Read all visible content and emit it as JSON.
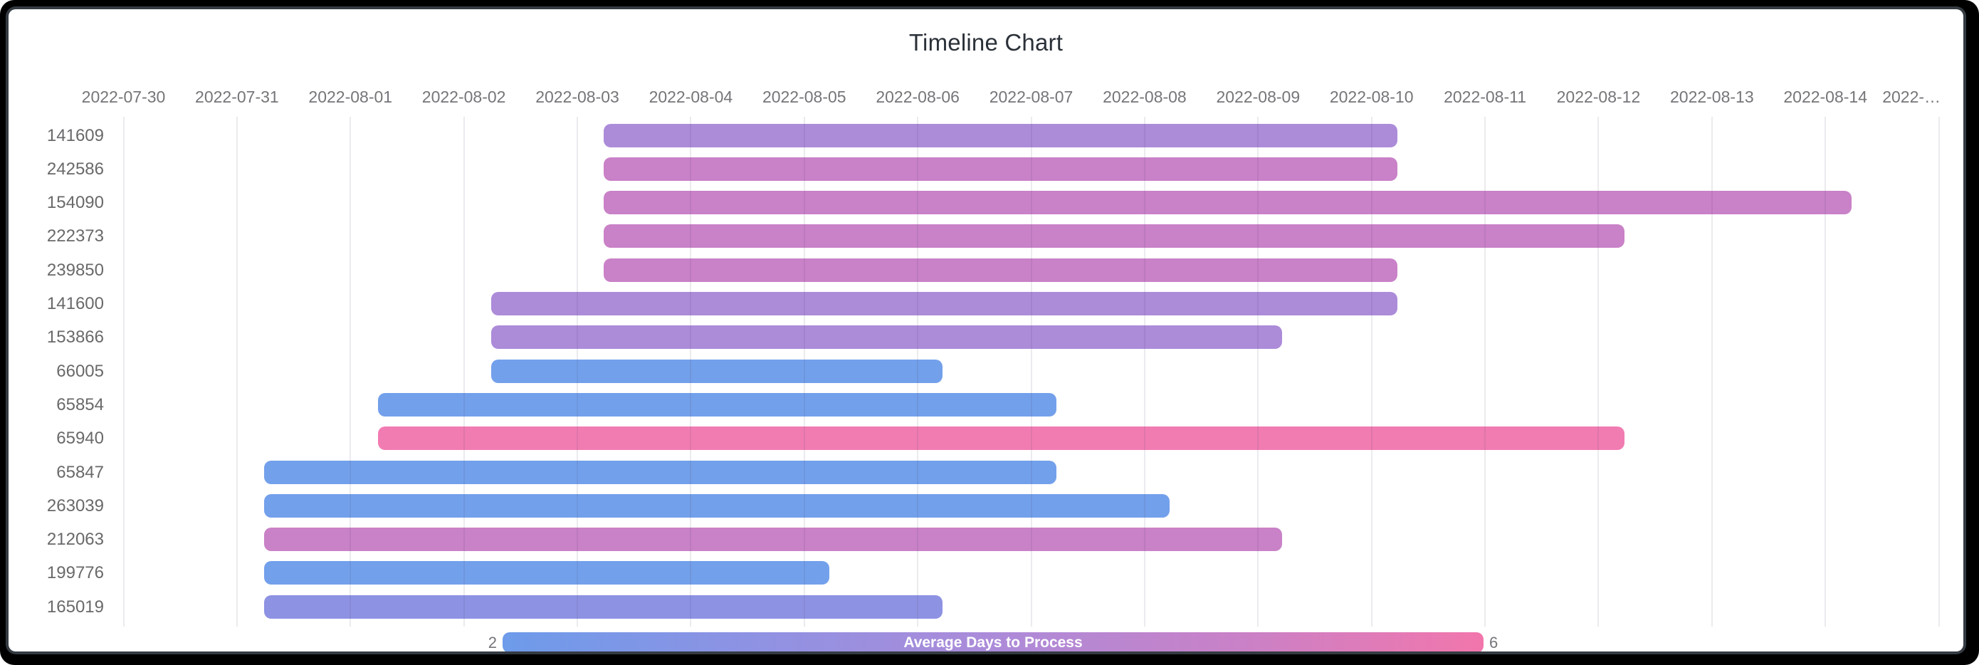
{
  "chart_data": {
    "type": "timeline",
    "title": "Timeline Chart",
    "x_axis": {
      "tick_labels": [
        "2022-07-30",
        "2022-07-31",
        "2022-08-01",
        "2022-08-02",
        "2022-08-03",
        "2022-08-04",
        "2022-08-05",
        "2022-08-06",
        "2022-08-07",
        "2022-08-08",
        "2022-08-09",
        "2022-08-10",
        "2022-08-11",
        "2022-08-12",
        "2022-08-13",
        "2022-08-14",
        "2022-…"
      ],
      "tick_interval": "1 day",
      "range_start": "2022-07-30",
      "grid": true,
      "last_label_truncated": true
    },
    "y_axis": {
      "categories": [
        "141609",
        "242586",
        "154090",
        "222373",
        "239850",
        "141600",
        "153866",
        "66005",
        "65854",
        "65940",
        "65847",
        "263039",
        "212063",
        "199776",
        "165019"
      ]
    },
    "colorbar": {
      "title": "Average Days to Process",
      "min": 2,
      "max": 6,
      "min_label": "2",
      "max_label": "6",
      "orientation": "horizontal",
      "position": "bottom-center",
      "gradient": [
        "#6D9BEA",
        "#8E92E3",
        "#AC8BD9",
        "#C981C7",
        "#F276AC"
      ]
    },
    "tasks": [
      {
        "id": "141609",
        "start_day": 4.23,
        "end_day": 11.23,
        "start_date": "2022-08-03",
        "end_date": "2022-08-10",
        "duration_days": 7,
        "avg_days_to_process": 4,
        "color": "#AC8BD9"
      },
      {
        "id": "242586",
        "start_day": 4.23,
        "end_day": 11.23,
        "start_date": "2022-08-03",
        "end_date": "2022-08-10",
        "duration_days": 7,
        "avg_days_to_process": 5,
        "color": "#C981C7"
      },
      {
        "id": "154090",
        "start_day": 4.23,
        "end_day": 15.23,
        "start_date": "2022-08-03",
        "end_date": "2022-08-14",
        "duration_days": 11,
        "avg_days_to_process": 5,
        "color": "#C981C7"
      },
      {
        "id": "222373",
        "start_day": 4.23,
        "end_day": 13.23,
        "start_date": "2022-08-03",
        "end_date": "2022-08-12",
        "duration_days": 9,
        "avg_days_to_process": 5,
        "color": "#C981C7"
      },
      {
        "id": "239850",
        "start_day": 4.23,
        "end_day": 11.23,
        "start_date": "2022-08-03",
        "end_date": "2022-08-10",
        "duration_days": 7,
        "avg_days_to_process": 5,
        "color": "#C981C7"
      },
      {
        "id": "141600",
        "start_day": 3.24,
        "end_day": 11.23,
        "start_date": "2022-08-02",
        "end_date": "2022-08-10",
        "duration_days": 8,
        "avg_days_to_process": 4,
        "color": "#AC8BD9"
      },
      {
        "id": "153866",
        "start_day": 3.24,
        "end_day": 10.21,
        "start_date": "2022-08-02",
        "end_date": "2022-08-09",
        "duration_days": 7,
        "avg_days_to_process": 4,
        "color": "#AC8BD9"
      },
      {
        "id": "66005",
        "start_day": 3.24,
        "end_day": 7.22,
        "start_date": "2022-08-02",
        "end_date": "2022-08-06",
        "duration_days": 4,
        "avg_days_to_process": 2,
        "color": "#73A0EB"
      },
      {
        "id": "65854",
        "start_day": 2.24,
        "end_day": 8.22,
        "start_date": "2022-08-01",
        "end_date": "2022-08-07",
        "duration_days": 6,
        "avg_days_to_process": 2,
        "color": "#73A0EB"
      },
      {
        "id": "65940",
        "start_day": 2.24,
        "end_day": 13.23,
        "start_date": "2022-08-01",
        "end_date": "2022-08-12",
        "duration_days": 11,
        "avg_days_to_process": 6,
        "color": "#F17CB2"
      },
      {
        "id": "65847",
        "start_day": 1.24,
        "end_day": 8.22,
        "start_date": "2022-07-31",
        "end_date": "2022-08-07",
        "duration_days": 7,
        "avg_days_to_process": 2,
        "color": "#73A0EB"
      },
      {
        "id": "263039",
        "start_day": 1.24,
        "end_day": 9.22,
        "start_date": "2022-07-31",
        "end_date": "2022-08-08",
        "duration_days": 8,
        "avg_days_to_process": 2,
        "color": "#73A0EB"
      },
      {
        "id": "212063",
        "start_day": 1.24,
        "end_day": 10.21,
        "start_date": "2022-07-31",
        "end_date": "2022-08-09",
        "duration_days": 9,
        "avg_days_to_process": 5,
        "color": "#C981C7"
      },
      {
        "id": "199776",
        "start_day": 1.24,
        "end_day": 6.22,
        "start_date": "2022-07-31",
        "end_date": "2022-08-05",
        "duration_days": 5,
        "avg_days_to_process": 2,
        "color": "#73A0EB"
      },
      {
        "id": "165019",
        "start_day": 1.24,
        "end_day": 7.22,
        "start_date": "2022-07-31",
        "end_date": "2022-08-06",
        "duration_days": 6,
        "avg_days_to_process": 3,
        "color": "#8E92E3"
      }
    ]
  }
}
